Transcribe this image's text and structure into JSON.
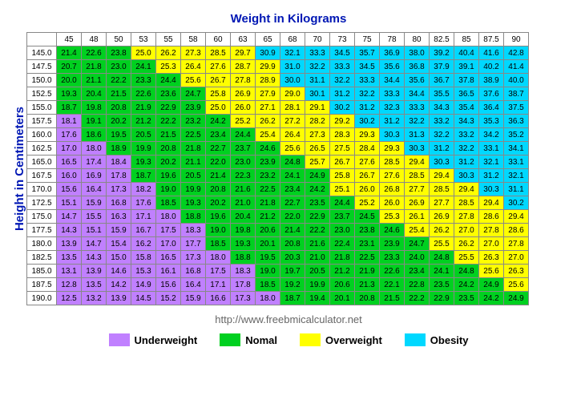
{
  "xlabel": "Weight in Kilograms",
  "ylabel": "Height in Centimeters",
  "source_url": "http://www.freebmicalculator.net",
  "colors": {
    "underweight": "#c080ff",
    "normal": "#00d020",
    "overweight": "#ffff00",
    "obesity": "#00d8ff",
    "border": "#888888",
    "label": "#0017b4"
  },
  "thresholds": {
    "under": 18.5,
    "over": 25.0,
    "obese": 30.0
  },
  "weights": [
    45,
    48,
    50,
    53,
    55,
    58,
    60,
    63,
    65,
    68,
    70,
    73,
    75,
    78,
    80,
    82.5,
    85,
    87.5,
    90
  ],
  "heights": [
    145.0,
    147.5,
    150.0,
    152.5,
    155.0,
    157.5,
    160.0,
    162.5,
    165.0,
    167.5,
    170.0,
    172.5,
    175.0,
    177.5,
    180.0,
    182.5,
    185.0,
    187.5,
    190.0
  ],
  "values": [
    [
      21.4,
      22.6,
      23.8,
      25.0,
      26.2,
      27.3,
      28.5,
      29.7,
      30.9,
      32.1,
      33.3,
      34.5,
      35.7,
      36.9,
      38.0,
      39.2,
      40.4,
      41.6,
      42.8
    ],
    [
      20.7,
      21.8,
      23.0,
      24.1,
      25.3,
      26.4,
      27.6,
      28.7,
      29.9,
      31.0,
      32.2,
      33.3,
      34.5,
      35.6,
      36.8,
      37.9,
      39.1,
      40.2,
      41.4
    ],
    [
      20.0,
      21.1,
      22.2,
      23.3,
      24.4,
      25.6,
      26.7,
      27.8,
      28.9,
      30.0,
      31.1,
      32.2,
      33.3,
      34.4,
      35.6,
      36.7,
      37.8,
      38.9,
      40.0
    ],
    [
      19.3,
      20.4,
      21.5,
      22.6,
      23.6,
      24.7,
      25.8,
      26.9,
      27.9,
      29.0,
      30.1,
      31.2,
      32.2,
      33.3,
      34.4,
      35.5,
      36.5,
      37.6,
      38.7
    ],
    [
      18.7,
      19.8,
      20.8,
      21.9,
      22.9,
      23.9,
      25.0,
      26.0,
      27.1,
      28.1,
      29.1,
      30.2,
      31.2,
      32.3,
      33.3,
      34.3,
      35.4,
      36.4,
      37.5
    ],
    [
      18.1,
      19.1,
      20.2,
      21.2,
      22.2,
      23.2,
      24.2,
      25.2,
      26.2,
      27.2,
      28.2,
      29.2,
      30.2,
      31.2,
      32.2,
      33.2,
      34.3,
      35.3,
      36.3
    ],
    [
      17.6,
      18.6,
      19.5,
      20.5,
      21.5,
      22.5,
      23.4,
      24.4,
      25.4,
      26.4,
      27.3,
      28.3,
      29.3,
      30.3,
      31.3,
      32.2,
      33.2,
      34.2,
      35.2
    ],
    [
      17.0,
      18.0,
      18.9,
      19.9,
      20.8,
      21.8,
      22.7,
      23.7,
      24.6,
      25.6,
      26.5,
      27.5,
      28.4,
      29.3,
      30.3,
      31.2,
      32.2,
      33.1,
      34.1
    ],
    [
      16.5,
      17.4,
      18.4,
      19.3,
      20.2,
      21.1,
      22.0,
      23.0,
      23.9,
      24.8,
      25.7,
      26.7,
      27.6,
      28.5,
      29.4,
      30.3,
      31.2,
      32.1,
      33.1
    ],
    [
      16.0,
      16.9,
      17.8,
      18.7,
      19.6,
      20.5,
      21.4,
      22.3,
      23.2,
      24.1,
      24.9,
      25.8,
      26.7,
      27.6,
      28.5,
      29.4,
      30.3,
      31.2,
      32.1
    ],
    [
      15.6,
      16.4,
      17.3,
      18.2,
      19.0,
      19.9,
      20.8,
      21.6,
      22.5,
      23.4,
      24.2,
      25.1,
      26.0,
      26.8,
      27.7,
      28.5,
      29.4,
      30.3,
      31.1
    ],
    [
      15.1,
      15.9,
      16.8,
      17.6,
      18.5,
      19.3,
      20.2,
      21.0,
      21.8,
      22.7,
      23.5,
      24.4,
      25.2,
      26.0,
      26.9,
      27.7,
      28.5,
      29.4,
      30.2
    ],
    [
      14.7,
      15.5,
      16.3,
      17.1,
      18.0,
      18.8,
      19.6,
      20.4,
      21.2,
      22.0,
      22.9,
      23.7,
      24.5,
      25.3,
      26.1,
      26.9,
      27.8,
      28.6,
      29.4
    ],
    [
      14.3,
      15.1,
      15.9,
      16.7,
      17.5,
      18.3,
      19.0,
      19.8,
      20.6,
      21.4,
      22.2,
      23.0,
      23.8,
      24.6,
      25.4,
      26.2,
      27.0,
      27.8,
      28.6
    ],
    [
      13.9,
      14.7,
      15.4,
      16.2,
      17.0,
      17.7,
      18.5,
      19.3,
      20.1,
      20.8,
      21.6,
      22.4,
      23.1,
      23.9,
      24.7,
      25.5,
      26.2,
      27.0,
      27.8
    ],
    [
      13.5,
      14.3,
      15.0,
      15.8,
      16.5,
      17.3,
      18.0,
      18.8,
      19.5,
      20.3,
      21.0,
      21.8,
      22.5,
      23.3,
      24.0,
      24.8,
      25.5,
      26.3,
      27.0
    ],
    [
      13.1,
      13.9,
      14.6,
      15.3,
      16.1,
      16.8,
      17.5,
      18.3,
      19.0,
      19.7,
      20.5,
      21.2,
      21.9,
      22.6,
      23.4,
      24.1,
      24.8,
      25.6,
      26.3
    ],
    [
      12.8,
      13.5,
      14.2,
      14.9,
      15.6,
      16.4,
      17.1,
      17.8,
      18.5,
      19.2,
      19.9,
      20.6,
      21.3,
      22.1,
      22.8,
      23.5,
      24.2,
      24.9,
      25.6
    ],
    [
      12.5,
      13.2,
      13.9,
      14.5,
      15.2,
      15.9,
      16.6,
      17.3,
      18.0,
      18.7,
      19.4,
      20.1,
      20.8,
      21.5,
      22.2,
      22.9,
      23.5,
      24.2,
      24.9
    ]
  ],
  "legend": [
    {
      "key": "underweight",
      "label": "Underweight"
    },
    {
      "key": "normal",
      "label": "Nomal"
    },
    {
      "key": "overweight",
      "label": "Overweight"
    },
    {
      "key": "obesity",
      "label": "Obesity"
    }
  ],
  "fonts": {
    "cell": 10,
    "title": 15,
    "legend": 13
  }
}
